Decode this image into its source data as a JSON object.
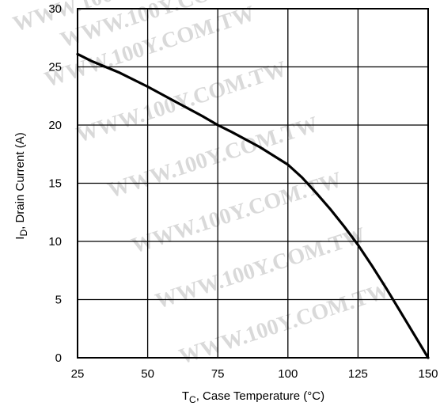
{
  "watermark": "WWW.100Y.COM.TW",
  "chart_data": {
    "type": "line",
    "xlabel": {
      "main": "T",
      "sub": "C",
      "rest": ", Case Temperature (°C)"
    },
    "ylabel": {
      "main": "I",
      "sub": "D",
      "rest": ", Drain Current (A)"
    },
    "xlim": [
      25,
      150
    ],
    "ylim": [
      0,
      30
    ],
    "xticks": [
      25,
      50,
      75,
      100,
      125,
      150
    ],
    "yticks": [
      0,
      5,
      10,
      15,
      20,
      25,
      30
    ],
    "grid": true,
    "series": [
      {
        "x": [
          25,
          30,
          40,
          50,
          60,
          70,
          75,
          80,
          90,
          100,
          105,
          110,
          115,
          120,
          125,
          130,
          135,
          140,
          145,
          150
        ],
        "y": [
          26.1,
          25.5,
          24.5,
          23.3,
          22.0,
          20.7,
          20.0,
          19.4,
          18.1,
          16.6,
          15.5,
          14.2,
          12.8,
          11.3,
          9.7,
          7.9,
          6.0,
          4.0,
          2.0,
          0
        ]
      }
    ]
  }
}
